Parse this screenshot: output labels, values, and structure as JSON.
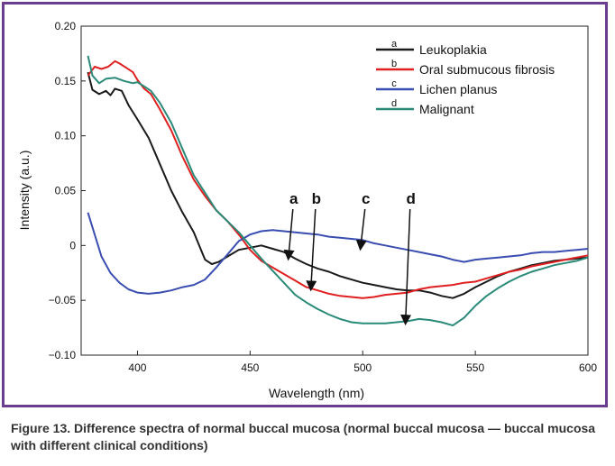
{
  "chart_data": {
    "type": "line",
    "xlabel": "Wavelength (nm)",
    "ylabel": "Intensity (a.u.)",
    "xlim": [
      375,
      600
    ],
    "ylim": [
      -0.1,
      0.2
    ],
    "xticks": [
      "400",
      "450",
      "500",
      "550",
      "600"
    ],
    "yticks": [
      "−0.10",
      "−0.05",
      "0",
      "0.05",
      "0.10",
      "0.15",
      "0.20"
    ],
    "xtick_values": [
      400,
      450,
      500,
      550,
      600
    ],
    "ytick_values": [
      -0.1,
      -0.05,
      0,
      0.05,
      0.1,
      0.15,
      0.2
    ],
    "grid": false,
    "legend_position": "top-right",
    "series": [
      {
        "name": "Leukoplakia",
        "letter": "a",
        "color": "#1a1a1a",
        "points": [
          [
            378,
            0.158
          ],
          [
            380,
            0.142
          ],
          [
            383,
            0.138
          ],
          [
            386,
            0.141
          ],
          [
            388,
            0.137
          ],
          [
            390,
            0.143
          ],
          [
            393,
            0.141
          ],
          [
            396,
            0.128
          ],
          [
            400,
            0.115
          ],
          [
            405,
            0.098
          ],
          [
            410,
            0.074
          ],
          [
            415,
            0.05
          ],
          [
            420,
            0.03
          ],
          [
            425,
            0.012
          ],
          [
            430,
            -0.013
          ],
          [
            433,
            -0.017
          ],
          [
            436,
            -0.015
          ],
          [
            440,
            -0.01
          ],
          [
            445,
            -0.004
          ],
          [
            450,
            -0.002
          ],
          [
            455,
            0.0
          ],
          [
            460,
            -0.003
          ],
          [
            465,
            -0.006
          ],
          [
            470,
            -0.012
          ],
          [
            475,
            -0.017
          ],
          [
            480,
            -0.021
          ],
          [
            485,
            -0.024
          ],
          [
            490,
            -0.028
          ],
          [
            495,
            -0.031
          ],
          [
            500,
            -0.034
          ],
          [
            505,
            -0.036
          ],
          [
            510,
            -0.038
          ],
          [
            515,
            -0.04
          ],
          [
            520,
            -0.041
          ],
          [
            525,
            -0.041
          ],
          [
            530,
            -0.043
          ],
          [
            535,
            -0.046
          ],
          [
            540,
            -0.048
          ],
          [
            545,
            -0.044
          ],
          [
            550,
            -0.038
          ],
          [
            555,
            -0.033
          ],
          [
            560,
            -0.028
          ],
          [
            565,
            -0.024
          ],
          [
            570,
            -0.021
          ],
          [
            575,
            -0.018
          ],
          [
            580,
            -0.016
          ],
          [
            585,
            -0.014
          ],
          [
            590,
            -0.013
          ],
          [
            595,
            -0.012
          ],
          [
            600,
            -0.011
          ]
        ]
      },
      {
        "name": "Oral submucous fibrosis",
        "letter": "b",
        "color": "#e02020",
        "points": [
          [
            378,
            0.155
          ],
          [
            381,
            0.163
          ],
          [
            384,
            0.161
          ],
          [
            387,
            0.163
          ],
          [
            390,
            0.168
          ],
          [
            392,
            0.166
          ],
          [
            395,
            0.162
          ],
          [
            398,
            0.158
          ],
          [
            400,
            0.151
          ],
          [
            403,
            0.143
          ],
          [
            406,
            0.138
          ],
          [
            410,
            0.124
          ],
          [
            415,
            0.105
          ],
          [
            420,
            0.081
          ],
          [
            425,
            0.06
          ],
          [
            430,
            0.045
          ],
          [
            435,
            0.032
          ],
          [
            440,
            0.022
          ],
          [
            445,
            0.01
          ],
          [
            450,
            -0.004
          ],
          [
            455,
            -0.014
          ],
          [
            460,
            -0.02
          ],
          [
            465,
            -0.026
          ],
          [
            470,
            -0.032
          ],
          [
            475,
            -0.038
          ],
          [
            480,
            -0.041
          ],
          [
            485,
            -0.044
          ],
          [
            490,
            -0.046
          ],
          [
            495,
            -0.047
          ],
          [
            500,
            -0.048
          ],
          [
            505,
            -0.047
          ],
          [
            510,
            -0.045
          ],
          [
            515,
            -0.044
          ],
          [
            520,
            -0.043
          ],
          [
            525,
            -0.04
          ],
          [
            530,
            -0.038
          ],
          [
            535,
            -0.037
          ],
          [
            540,
            -0.036
          ],
          [
            545,
            -0.034
          ],
          [
            550,
            -0.033
          ],
          [
            555,
            -0.03
          ],
          [
            560,
            -0.027
          ],
          [
            565,
            -0.024
          ],
          [
            570,
            -0.022
          ],
          [
            575,
            -0.019
          ],
          [
            580,
            -0.017
          ],
          [
            585,
            -0.015
          ],
          [
            590,
            -0.013
          ],
          [
            595,
            -0.011
          ],
          [
            600,
            -0.009
          ]
        ]
      },
      {
        "name": "Lichen planus",
        "letter": "c",
        "color": "#3a4db0",
        "points": [
          [
            378,
            0.03
          ],
          [
            381,
            0.01
          ],
          [
            384,
            -0.01
          ],
          [
            388,
            -0.025
          ],
          [
            392,
            -0.034
          ],
          [
            396,
            -0.04
          ],
          [
            400,
            -0.043
          ],
          [
            405,
            -0.044
          ],
          [
            410,
            -0.043
          ],
          [
            415,
            -0.041
          ],
          [
            420,
            -0.038
          ],
          [
            425,
            -0.036
          ],
          [
            430,
            -0.031
          ],
          [
            435,
            -0.02
          ],
          [
            440,
            -0.008
          ],
          [
            445,
            0.004
          ],
          [
            450,
            0.01
          ],
          [
            455,
            0.013
          ],
          [
            460,
            0.014
          ],
          [
            465,
            0.013
          ],
          [
            470,
            0.012
          ],
          [
            475,
            0.011
          ],
          [
            480,
            0.01
          ],
          [
            485,
            0.008
          ],
          [
            490,
            0.007
          ],
          [
            495,
            0.006
          ],
          [
            500,
            0.005
          ],
          [
            505,
            0.002
          ],
          [
            510,
            0.0
          ],
          [
            515,
            -0.002
          ],
          [
            520,
            -0.004
          ],
          [
            525,
            -0.006
          ],
          [
            530,
            -0.008
          ],
          [
            535,
            -0.01
          ],
          [
            540,
            -0.013
          ],
          [
            545,
            -0.015
          ],
          [
            550,
            -0.013
          ],
          [
            555,
            -0.012
          ],
          [
            560,
            -0.011
          ],
          [
            565,
            -0.01
          ],
          [
            570,
            -0.009
          ],
          [
            575,
            -0.007
          ],
          [
            580,
            -0.006
          ],
          [
            585,
            -0.006
          ],
          [
            590,
            -0.005
          ],
          [
            595,
            -0.004
          ],
          [
            600,
            -0.003
          ]
        ]
      },
      {
        "name": "Malignant",
        "letter": "d",
        "color": "#2a8a78",
        "points": [
          [
            378,
            0.173
          ],
          [
            380,
            0.155
          ],
          [
            383,
            0.148
          ],
          [
            386,
            0.152
          ],
          [
            390,
            0.153
          ],
          [
            394,
            0.15
          ],
          [
            398,
            0.148
          ],
          [
            400,
            0.149
          ],
          [
            403,
            0.145
          ],
          [
            406,
            0.141
          ],
          [
            410,
            0.13
          ],
          [
            415,
            0.112
          ],
          [
            420,
            0.088
          ],
          [
            425,
            0.064
          ],
          [
            430,
            0.048
          ],
          [
            435,
            0.032
          ],
          [
            440,
            0.022
          ],
          [
            445,
            0.012
          ],
          [
            450,
            0.0
          ],
          [
            455,
            -0.012
          ],
          [
            460,
            -0.023
          ],
          [
            465,
            -0.034
          ],
          [
            470,
            -0.045
          ],
          [
            475,
            -0.052
          ],
          [
            480,
            -0.058
          ],
          [
            485,
            -0.063
          ],
          [
            490,
            -0.067
          ],
          [
            495,
            -0.07
          ],
          [
            500,
            -0.071
          ],
          [
            505,
            -0.071
          ],
          [
            510,
            -0.071
          ],
          [
            515,
            -0.07
          ],
          [
            520,
            -0.069
          ],
          [
            525,
            -0.067
          ],
          [
            530,
            -0.068
          ],
          [
            535,
            -0.07
          ],
          [
            540,
            -0.073
          ],
          [
            545,
            -0.066
          ],
          [
            550,
            -0.055
          ],
          [
            555,
            -0.046
          ],
          [
            560,
            -0.039
          ],
          [
            565,
            -0.033
          ],
          [
            570,
            -0.028
          ],
          [
            575,
            -0.024
          ],
          [
            580,
            -0.021
          ],
          [
            585,
            -0.018
          ],
          [
            590,
            -0.016
          ],
          [
            595,
            -0.014
          ],
          [
            600,
            -0.011
          ]
        ]
      }
    ],
    "annotations": [
      {
        "text": "a",
        "x": 467,
        "tip_y": -0.014
      },
      {
        "text": "b",
        "x": 477,
        "tip_y": -0.042
      },
      {
        "text": "c",
        "x": 499,
        "tip_y": -0.005
      },
      {
        "text": "d",
        "x": 519,
        "tip_y": -0.073
      }
    ]
  },
  "caption": "Figure 13. Difference spectra of normal buccal mucosa (normal buccal mucosa — buccal mucosa with different clinical conditions)",
  "colors": {
    "frame": "#6a3d8f",
    "caption": "#333333"
  }
}
